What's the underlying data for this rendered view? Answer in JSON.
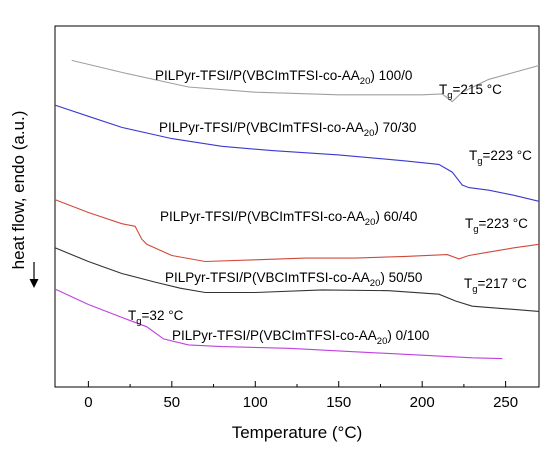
{
  "chart_data": {
    "type": "line",
    "title": "",
    "xlabel": "Temperature (°C)",
    "ylabel": "heat flow, endo (a.u.)",
    "xlim": [
      -20,
      270
    ],
    "xticks": [
      0,
      50,
      100,
      150,
      200,
      250
    ],
    "y_ticks_shown": false,
    "grid": false,
    "legend": "none",
    "endo_arrow": "down",
    "series": [
      {
        "name": "PILPyr-TFSI/P(VBCImTFSI-co-AA20) 100/0",
        "color": "#a0a0a0",
        "x": [
          -10,
          20,
          60,
          100,
          150,
          200,
          212,
          218,
          224,
          240,
          270
        ],
        "y": [
          22.0,
          20.6,
          18.9,
          18.3,
          18.0,
          18.0,
          18.1,
          17.2,
          18.3,
          19.8,
          21.4
        ],
        "tg": 215,
        "tg_text": "=215 °C"
      },
      {
        "name": "PILPyr-TFSI/P(VBCImTFSI-co-AA20) 70/30",
        "color": "#3a3ad0",
        "x": [
          -20,
          0,
          20,
          50,
          80,
          110,
          150,
          190,
          210,
          218,
          224,
          228,
          240,
          255,
          270
        ],
        "y": [
          16.8,
          15.5,
          14.2,
          12.9,
          12.0,
          11.5,
          11.0,
          10.3,
          9.9,
          9.0,
          7.5,
          7.2,
          6.9,
          6.3,
          5.6
        ],
        "tg": 223,
        "tg_text": "=223 °C"
      },
      {
        "name": "PILPyr-TFSI/P(VBCImTFSI-co-AA20) 60/40",
        "color": "#d04a3a",
        "x": [
          -20,
          0,
          20,
          28,
          32,
          35,
          50,
          70,
          100,
          130,
          160,
          190,
          215,
          222,
          228,
          240,
          255,
          270
        ],
        "y": [
          5.8,
          4.3,
          3.0,
          2.7,
          1.2,
          0.6,
          -0.7,
          -1.4,
          -1.2,
          -1.0,
          -1.0,
          -0.8,
          -0.6,
          -1.1,
          -0.7,
          -0.3,
          0.2,
          0.6
        ],
        "tg": 223,
        "tg_text": "=223 °C"
      },
      {
        "name": "PILPyr-TFSI/P(VBCImTFSI-co-AA20) 50/50",
        "color": "#333333",
        "x": [
          -20,
          0,
          20,
          40,
          55,
          70,
          100,
          140,
          180,
          210,
          220,
          230,
          250,
          270
        ],
        "y": [
          0.2,
          -1.4,
          -2.8,
          -3.8,
          -4.5,
          -5.0,
          -5.0,
          -4.7,
          -4.8,
          -5.2,
          -6.0,
          -6.6,
          -6.9,
          -7.2
        ],
        "tg": 217,
        "tg_text": "=217 °C"
      },
      {
        "name": "PILPyr-TFSI/P(VBCImTFSI-co-AA20) 0/100",
        "color": "#c040e0",
        "x": [
          -20,
          0,
          20,
          35,
          45,
          60,
          80,
          120,
          160,
          200,
          230,
          248
        ],
        "y": [
          -4.6,
          -6.4,
          -7.9,
          -9.0,
          -10.4,
          -11.1,
          -11.3,
          -11.5,
          -11.9,
          -12.3,
          -12.6,
          -12.7
        ],
        "tg": 32,
        "tg_text": "=32 °C"
      }
    ],
    "annotations": [
      {
        "series": 0,
        "label_main": "PILPyr-TFSI/P(VBCImTFSI-co-AA",
        "label_sub": "20",
        "label_ratio": ") 100/0",
        "tg_symbol": "T",
        "tg_sub": "g"
      },
      {
        "series": 1,
        "label_main": "PILPyr-TFSI/P(VBCImTFSI-co-AA",
        "label_sub": "20",
        "label_ratio": ") 70/30",
        "tg_symbol": "T",
        "tg_sub": "g"
      },
      {
        "series": 2,
        "label_main": "PILPyr-TFSI/P(VBCImTFSI-co-AA",
        "label_sub": "20",
        "label_ratio": ") 60/40",
        "tg_symbol": "T",
        "tg_sub": "g"
      },
      {
        "series": 3,
        "label_main": "PILPyr-TFSI/P(VBCImTFSI-co-AA",
        "label_sub": "20",
        "label_ratio": ") 50/50",
        "tg_symbol": "T",
        "tg_sub": "g"
      },
      {
        "series": 4,
        "label_main": "PILPyr-TFSI/P(VBCImTFSI-co-AA",
        "label_sub": "20",
        "label_ratio": ") 0/100",
        "tg_symbol": "T",
        "tg_sub": "g"
      }
    ]
  }
}
